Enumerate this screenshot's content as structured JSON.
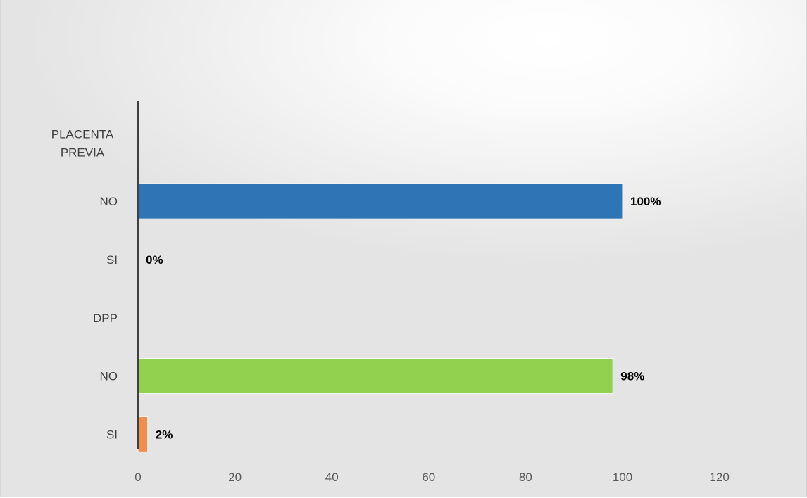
{
  "chart_data": {
    "type": "bar",
    "orientation": "horizontal",
    "categories": [
      "PLACENTA PREVIA",
      "NO",
      "SI",
      "DPP",
      "NO",
      "SI"
    ],
    "values": [
      null,
      100,
      0,
      null,
      98,
      2
    ],
    "data_labels": [
      "",
      "100%",
      "0%",
      "",
      "98%",
      "2%"
    ],
    "bar_colors": [
      "",
      "#2E75B6",
      "#2E75B6",
      "",
      "#92D050",
      "#ED8F4E"
    ],
    "xlim": [
      0,
      120
    ],
    "xticks": [
      0,
      20,
      40,
      60,
      80,
      100,
      120
    ],
    "grid": false,
    "legend": "none",
    "title": "",
    "xlabel": "",
    "ylabel": ""
  }
}
